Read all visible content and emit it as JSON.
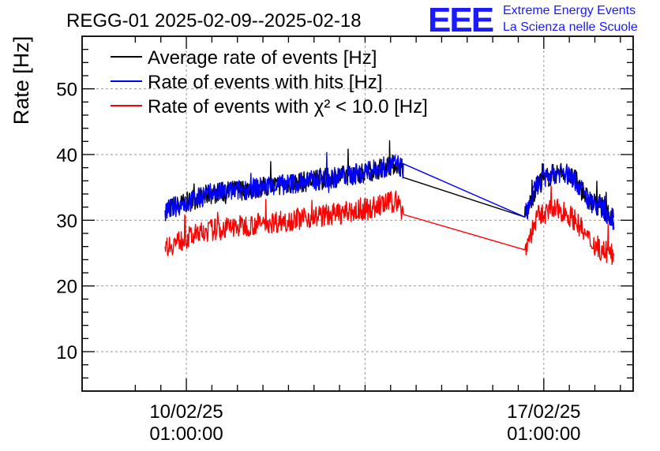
{
  "chart_data": {
    "type": "line",
    "title": "REGG-01 2025-02-09--2025-02-18",
    "ylabel": "Rate [Hz]",
    "xlabel": "",
    "x_axis_type": "datetime",
    "xlim": [
      "2025-02-08T00:00:00",
      "2025-02-18T19:00:00"
    ],
    "ylim": [
      4,
      58
    ],
    "grid": true,
    "legend_position": "top-left",
    "y_ticks": [
      10,
      20,
      30,
      40,
      50
    ],
    "y_tick_labels": [
      "10",
      "20",
      "30",
      "40",
      "50"
    ],
    "x_ticks": [
      "2025-02-10T01:00:00",
      "2025-02-17T01:00:00"
    ],
    "x_tick_labels": [
      [
        "10/02/25",
        "01:00:00"
      ],
      [
        "17/02/25",
        "01:00:00"
      ]
    ],
    "x_grid": [
      "2025-02-10T01:00:00",
      "2025-02-13T13:00:00",
      "2025-02-17T01:00:00"
    ],
    "legend": [
      {
        "label": "Average rate of events [Hz]",
        "color": "#000000"
      },
      {
        "label": "Rate of events with hits [Hz]",
        "color": "#0000ff"
      },
      {
        "label": "Rate of events with χ² < 10.0 [Hz]",
        "color": "#ff0000"
      }
    ],
    "series": [
      {
        "name": "Average rate of events [Hz]",
        "color": "#000000",
        "x": [
          "2025-02-09T15:00:00",
          "2025-02-10T12:00:00",
          "2025-02-11T12:00:00",
          "2025-02-12T12:00:00",
          "2025-02-13T12:00:00",
          "2025-02-14T04:00:00",
          "2025-02-14T07:00:00",
          "2025-02-16T16:00:00",
          "2025-02-16T22:00:00",
          "2025-02-17T04:00:00",
          "2025-02-17T10:00:00",
          "2025-02-17T16:00:00",
          "2025-02-17T22:00:00",
          "2025-02-18T04:00:00",
          "2025-02-18T10:00:00"
        ],
        "y": [
          31.5,
          34,
          35,
          36,
          37.2,
          38.6,
          37.8,
          30.5,
          35.5,
          36.8,
          37.5,
          36,
          33,
          32,
          30
        ]
      },
      {
        "name": "Rate of events with hits [Hz]",
        "color": "#0000ff",
        "x": [
          "2025-02-09T15:00:00",
          "2025-02-10T12:00:00",
          "2025-02-11T12:00:00",
          "2025-02-12T12:00:00",
          "2025-02-13T12:00:00",
          "2025-02-14T04:00:00",
          "2025-02-14T07:00:00",
          "2025-02-16T16:00:00",
          "2025-02-16T22:00:00",
          "2025-02-17T04:00:00",
          "2025-02-17T10:00:00",
          "2025-02-17T16:00:00",
          "2025-02-17T22:00:00",
          "2025-02-18T04:00:00",
          "2025-02-18T10:00:00"
        ],
        "y": [
          31.5,
          34,
          35,
          36,
          37.2,
          38.6,
          37.8,
          30.5,
          35.5,
          36.8,
          37.5,
          36,
          33,
          32,
          30
        ]
      },
      {
        "name": "Rate of events with χ² < 10.0 [Hz]",
        "color": "#ff0000",
        "x": [
          "2025-02-09T15:00:00",
          "2025-02-10T12:00:00",
          "2025-02-11T12:00:00",
          "2025-02-12T12:00:00",
          "2025-02-13T12:00:00",
          "2025-02-14T04:00:00",
          "2025-02-14T07:00:00",
          "2025-02-16T16:00:00",
          "2025-02-16T22:00:00",
          "2025-02-17T04:00:00",
          "2025-02-17T10:00:00",
          "2025-02-17T16:00:00",
          "2025-02-17T22:00:00",
          "2025-02-18T04:00:00",
          "2025-02-18T10:00:00"
        ],
        "y": [
          26,
          28.5,
          29.5,
          30.5,
          31.5,
          33,
          31,
          25.5,
          30.5,
          31.5,
          31.5,
          30,
          27,
          25.5,
          24.5
        ]
      }
    ]
  },
  "logo": {
    "mark": "EEE",
    "line1": "Extreme Energy Events",
    "line2": "La Scienza nelle Scuole"
  }
}
